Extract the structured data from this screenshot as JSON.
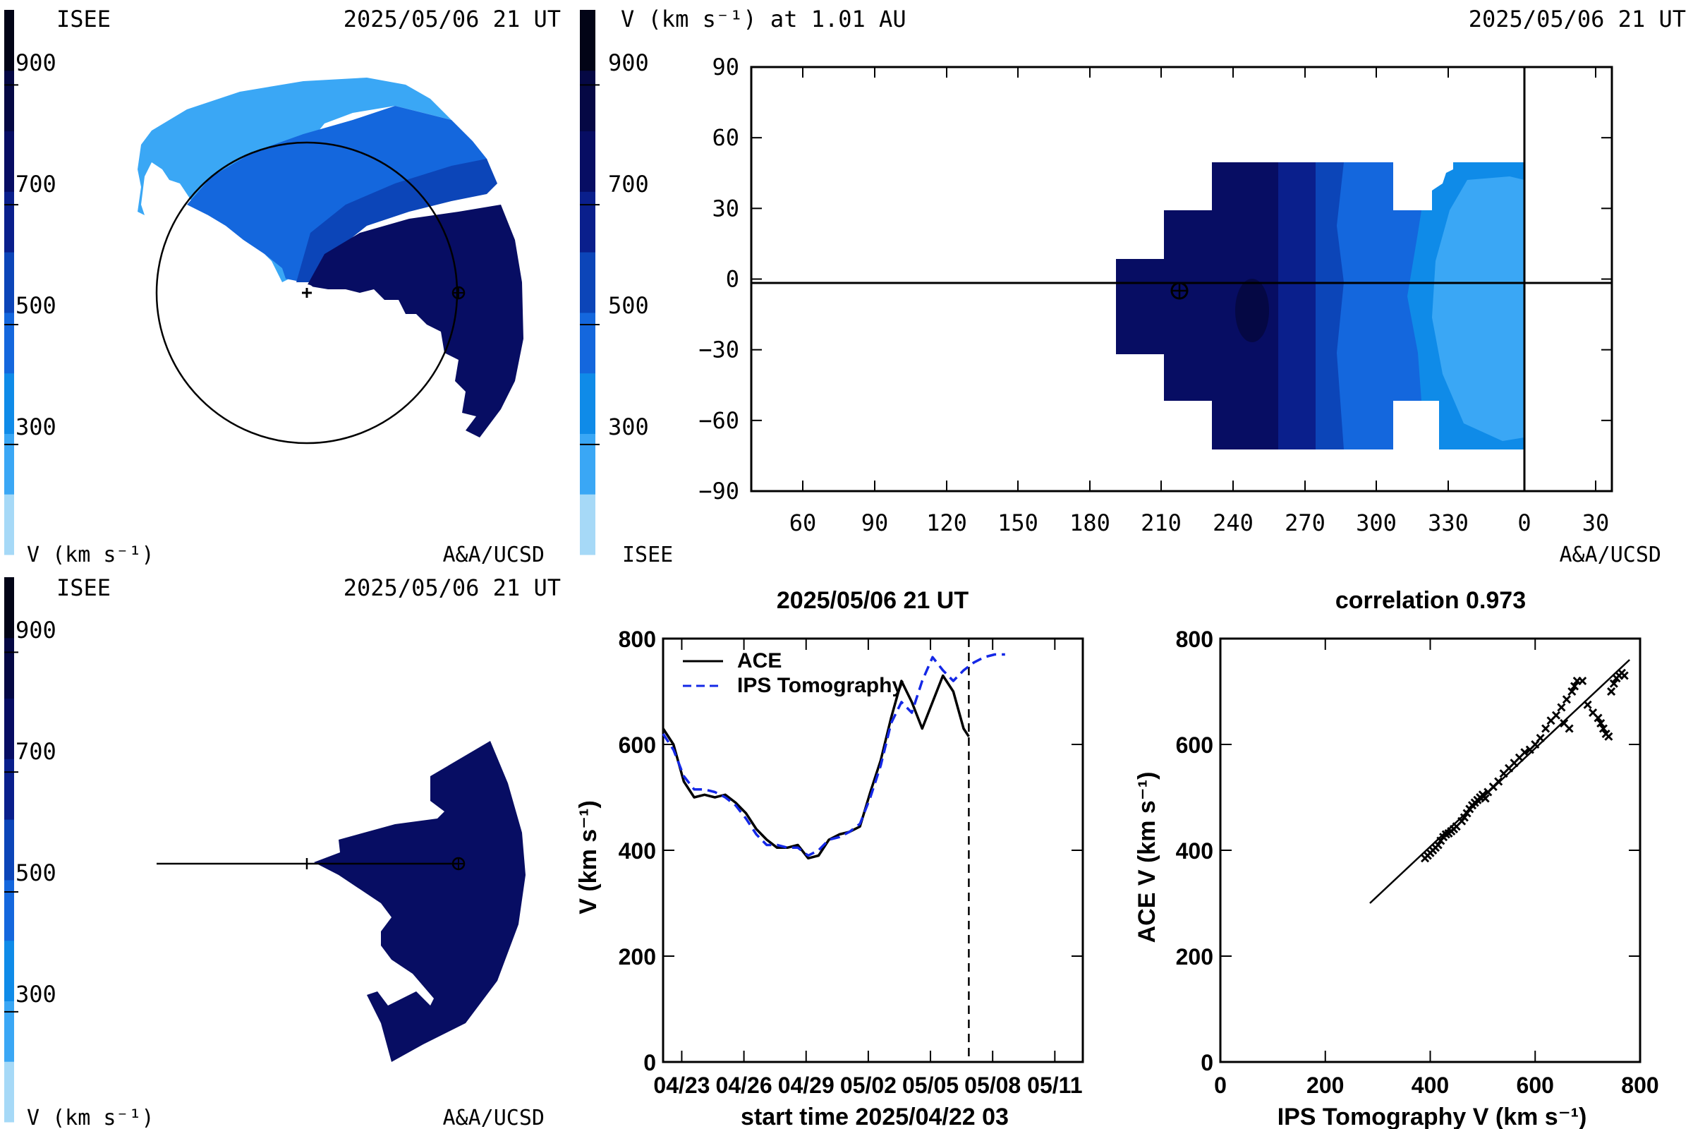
{
  "colors": {
    "scale": [
      "#a6d9f7",
      "#3aa7f5",
      "#0f8be8",
      "#1467dd",
      "#0c45b8",
      "#0a1f8c",
      "#070d63",
      "#050844",
      "#020416"
    ],
    "ace_line": "#000000",
    "ips_line": "#1428e6",
    "background": "#ffffff"
  },
  "panel_polar_top": {
    "org_label": "ISEE",
    "timestamp": "2025/05/06 21 UT",
    "colorbar_ticks": [
      "900",
      "700",
      "500",
      "300"
    ],
    "colorbar_label": "V (km s⁻¹)",
    "credit": "A&A/UCSD"
  },
  "panel_map": {
    "title": "V (km s⁻¹) at 1.01 AU",
    "timestamp": "2025/05/06 21 UT",
    "colorbar_ticks": [
      "900",
      "700",
      "500",
      "300"
    ],
    "org_label": "ISEE",
    "credit": "A&A/UCSD",
    "y_ticks": [
      "90",
      "60",
      "30",
      "0",
      "−30",
      "−60",
      "−90"
    ],
    "x_ticks": [
      "60",
      "90",
      "120",
      "150",
      "180",
      "210",
      "240",
      "270",
      "300",
      "330",
      "0",
      "30"
    ]
  },
  "panel_polar_bottom": {
    "org_label": "ISEE",
    "timestamp": "2025/05/06 21 UT",
    "colorbar_ticks": [
      "900",
      "700",
      "500",
      "300"
    ],
    "colorbar_label": "V (km s⁻¹)",
    "credit": "A&A/UCSD"
  },
  "chart_data": [
    {
      "type": "line",
      "title": "2025/05/06 21 UT",
      "xlabel": "start time 2025/04/22 03",
      "ylabel": "V (km s⁻¹)",
      "ylim": [
        0,
        800
      ],
      "x_tick_labels": [
        "04/23",
        "04/26",
        "04/29",
        "05/02",
        "05/05",
        "05/08",
        "05/11"
      ],
      "y_tick_labels": [
        "0",
        "200",
        "400",
        "600",
        "800"
      ],
      "legend": "top-left",
      "vertical_marker_day": 14.75,
      "series": [
        {
          "name": "ACE",
          "style": "solid",
          "x_days_from_start": [
            0,
            0.5,
            1.0,
            1.5,
            2.0,
            2.5,
            3.0,
            3.5,
            4.0,
            4.5,
            5.0,
            5.5,
            6.0,
            6.5,
            7.0,
            7.5,
            8.0,
            8.5,
            9.0,
            9.5,
            10.0,
            10.5,
            11.0,
            11.5,
            12.0,
            12.5,
            13.0,
            13.5,
            14.0,
            14.5,
            14.75
          ],
          "values": [
            630,
            600,
            530,
            500,
            505,
            500,
            505,
            490,
            470,
            440,
            420,
            405,
            405,
            410,
            385,
            390,
            420,
            430,
            435,
            445,
            510,
            570,
            650,
            720,
            680,
            630,
            680,
            730,
            700,
            630,
            615
          ]
        },
        {
          "name": "IPS Tomography",
          "style": "dashed",
          "x_days_from_start": [
            0,
            0.5,
            1.0,
            1.5,
            2.0,
            2.5,
            3.0,
            3.5,
            4.0,
            4.5,
            5.0,
            5.5,
            6.0,
            6.5,
            7.0,
            7.5,
            8.0,
            8.5,
            9.0,
            9.5,
            10.0,
            10.5,
            11.0,
            11.5,
            12.0,
            12.5,
            13.0,
            13.5,
            14.0,
            14.5,
            15.0,
            15.5,
            16.0,
            16.5
          ],
          "values": [
            620,
            590,
            540,
            515,
            515,
            510,
            500,
            485,
            460,
            430,
            410,
            410,
            405,
            405,
            390,
            400,
            420,
            425,
            435,
            450,
            500,
            560,
            640,
            680,
            660,
            720,
            765,
            740,
            720,
            740,
            755,
            765,
            770,
            770
          ]
        }
      ]
    },
    {
      "type": "scatter",
      "title": "correlation 0.973",
      "xlabel": "IPS Tomography V (km s⁻¹)",
      "ylabel": "ACE V (km s⁻¹)",
      "xlim": [
        0,
        800
      ],
      "ylim": [
        0,
        800
      ],
      "x_tick_labels": [
        "0",
        "200",
        "400",
        "600",
        "800"
      ],
      "y_tick_labels": [
        "0",
        "200",
        "400",
        "600",
        "800"
      ],
      "fit_line": [
        [
          285,
          300
        ],
        [
          780,
          760
        ]
      ],
      "points": [
        [
          390,
          385
        ],
        [
          395,
          390
        ],
        [
          400,
          395
        ],
        [
          405,
          400
        ],
        [
          410,
          405
        ],
        [
          415,
          410
        ],
        [
          420,
          418
        ],
        [
          425,
          425
        ],
        [
          430,
          430
        ],
        [
          435,
          432
        ],
        [
          440,
          436
        ],
        [
          445,
          440
        ],
        [
          450,
          445
        ],
        [
          460,
          455
        ],
        [
          465,
          462
        ],
        [
          470,
          470
        ],
        [
          475,
          478
        ],
        [
          480,
          485
        ],
        [
          485,
          490
        ],
        [
          490,
          495
        ],
        [
          495,
          500
        ],
        [
          500,
          505
        ],
        [
          505,
          498
        ],
        [
          510,
          510
        ],
        [
          520,
          520
        ],
        [
          530,
          530
        ],
        [
          540,
          545
        ],
        [
          550,
          555
        ],
        [
          560,
          565
        ],
        [
          570,
          575
        ],
        [
          580,
          585
        ],
        [
          590,
          590
        ],
        [
          600,
          600
        ],
        [
          610,
          612
        ],
        [
          620,
          630
        ],
        [
          630,
          645
        ],
        [
          640,
          655
        ],
        [
          650,
          670
        ],
        [
          655,
          640
        ],
        [
          660,
          685
        ],
        [
          665,
          630
        ],
        [
          670,
          700
        ],
        [
          675,
          710
        ],
        [
          680,
          720
        ],
        [
          690,
          720
        ],
        [
          700,
          675
        ],
        [
          710,
          660
        ],
        [
          720,
          650
        ],
        [
          725,
          640
        ],
        [
          730,
          630
        ],
        [
          735,
          620
        ],
        [
          740,
          615
        ],
        [
          745,
          700
        ],
        [
          750,
          715
        ],
        [
          755,
          725
        ],
        [
          760,
          730
        ],
        [
          765,
          735
        ],
        [
          770,
          730
        ]
      ]
    }
  ]
}
